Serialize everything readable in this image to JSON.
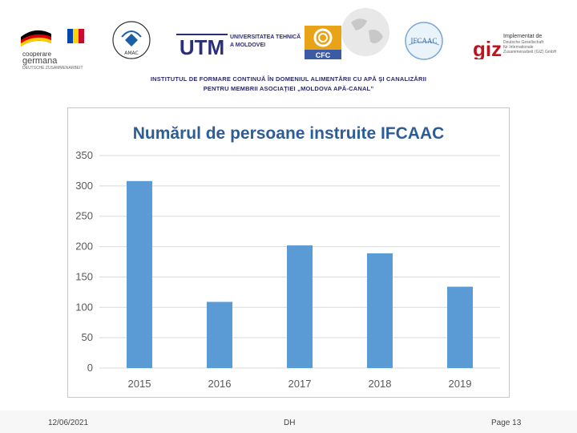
{
  "header": {
    "logos": {
      "cooperare": {
        "line1": "cooperare",
        "line2": "germana",
        "line3": "DEUTSCHE ZUSAMMENARBEIT"
      },
      "ameamb": {
        "label": "AMAC"
      },
      "utm": {
        "mark": "UTM",
        "line1": "UNIVERSITATEA TEHNICĂ",
        "line2": "A MOLDOVEI"
      },
      "cfc": {
        "label": "CFC"
      },
      "ifcaac": {
        "label": "IFCAAC"
      },
      "giz": {
        "mark": "giz",
        "line1": "Implementat de",
        "line2": "Deutsche Gesellschaft",
        "line3": "für Internationale",
        "line4": "Zusammenarbeit (GIZ) GmbH"
      }
    },
    "title_line1": "INSTITUTUL DE FORMARE CONTINUĂ ÎN DOMENIUL ALIMENTĂRII CU APĂ ŞI CANALIZĂRII",
    "title_line2": "PENTRU MEMBRII ASOCIAŢIEI „MOLDOVA APĂ-CANAL”"
  },
  "chart_data": {
    "type": "bar",
    "title": "Numărul de persoane instruite IFCAAC",
    "categories": [
      "2015",
      "2016",
      "2017",
      "2018",
      "2019"
    ],
    "values": [
      308,
      109,
      202,
      189,
      134
    ],
    "ylim": [
      0,
      350
    ],
    "yticks": [
      "0",
      "50",
      "100",
      "150",
      "200",
      "250",
      "300",
      "350"
    ],
    "xlabel": "",
    "ylabel": "",
    "grid": true,
    "bar_color": "#5b9bd5"
  },
  "footer": {
    "date": "12/06/2021",
    "center": "DH",
    "page": "Page 13"
  }
}
